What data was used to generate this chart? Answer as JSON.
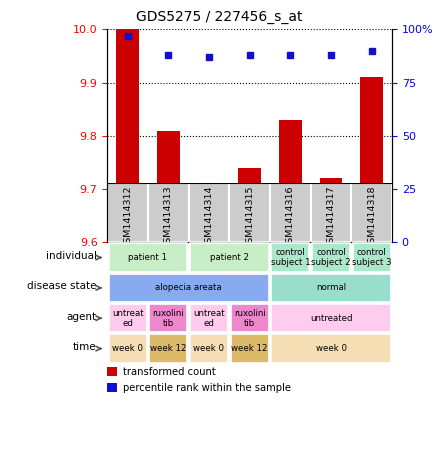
{
  "title": "GDS5275 / 227456_s_at",
  "samples": [
    "GSM1414312",
    "GSM1414313",
    "GSM1414314",
    "GSM1414315",
    "GSM1414316",
    "GSM1414317",
    "GSM1414318"
  ],
  "bar_values": [
    10.0,
    9.81,
    9.68,
    9.74,
    9.83,
    9.72,
    9.91
  ],
  "percentile_values": [
    97,
    88,
    87,
    88,
    88,
    88,
    90
  ],
  "ylim_left": [
    9.6,
    10.0
  ],
  "yticks_left": [
    9.6,
    9.7,
    9.8,
    9.9,
    10.0
  ],
  "ylim_right": [
    0,
    100
  ],
  "yticks_right": [
    0,
    25,
    50,
    75,
    100
  ],
  "bar_color": "#cc0000",
  "dot_color": "#1111cc",
  "bar_width": 0.55,
  "annotation_rows": [
    {
      "label": "individual",
      "cells": [
        {
          "text": "patient 1",
          "colspan": 2,
          "color": "#c8eec8"
        },
        {
          "text": "patient 2",
          "colspan": 2,
          "color": "#c8eec8"
        },
        {
          "text": "control\nsubject 1",
          "colspan": 1,
          "color": "#aae8cc"
        },
        {
          "text": "control\nsubject 2",
          "colspan": 1,
          "color": "#aae8cc"
        },
        {
          "text": "control\nsubject 3",
          "colspan": 1,
          "color": "#aae8cc"
        }
      ]
    },
    {
      "label": "disease state",
      "cells": [
        {
          "text": "alopecia areata",
          "colspan": 4,
          "color": "#88aaee"
        },
        {
          "text": "normal",
          "colspan": 3,
          "color": "#99ddcc"
        }
      ]
    },
    {
      "label": "agent",
      "cells": [
        {
          "text": "untreat\ned",
          "colspan": 1,
          "color": "#ffccee"
        },
        {
          "text": "ruxolini\ntib",
          "colspan": 1,
          "color": "#ee88cc"
        },
        {
          "text": "untreat\ned",
          "colspan": 1,
          "color": "#ffccee"
        },
        {
          "text": "ruxolini\ntib",
          "colspan": 1,
          "color": "#ee88cc"
        },
        {
          "text": "untreated",
          "colspan": 3,
          "color": "#ffccee"
        }
      ]
    },
    {
      "label": "time",
      "cells": [
        {
          "text": "week 0",
          "colspan": 1,
          "color": "#f5deb3"
        },
        {
          "text": "week 12",
          "colspan": 1,
          "color": "#ddb96a"
        },
        {
          "text": "week 0",
          "colspan": 1,
          "color": "#f5deb3"
        },
        {
          "text": "week 12",
          "colspan": 1,
          "color": "#ddb96a"
        },
        {
          "text": "week 0",
          "colspan": 3,
          "color": "#f5deb3"
        }
      ]
    }
  ],
  "legend_items": [
    {
      "color": "#cc0000",
      "label": "transformed count"
    },
    {
      "color": "#1111cc",
      "label": "percentile rank within the sample"
    }
  ],
  "sample_box_color": "#cccccc",
  "sample_box_edge": "#999999"
}
